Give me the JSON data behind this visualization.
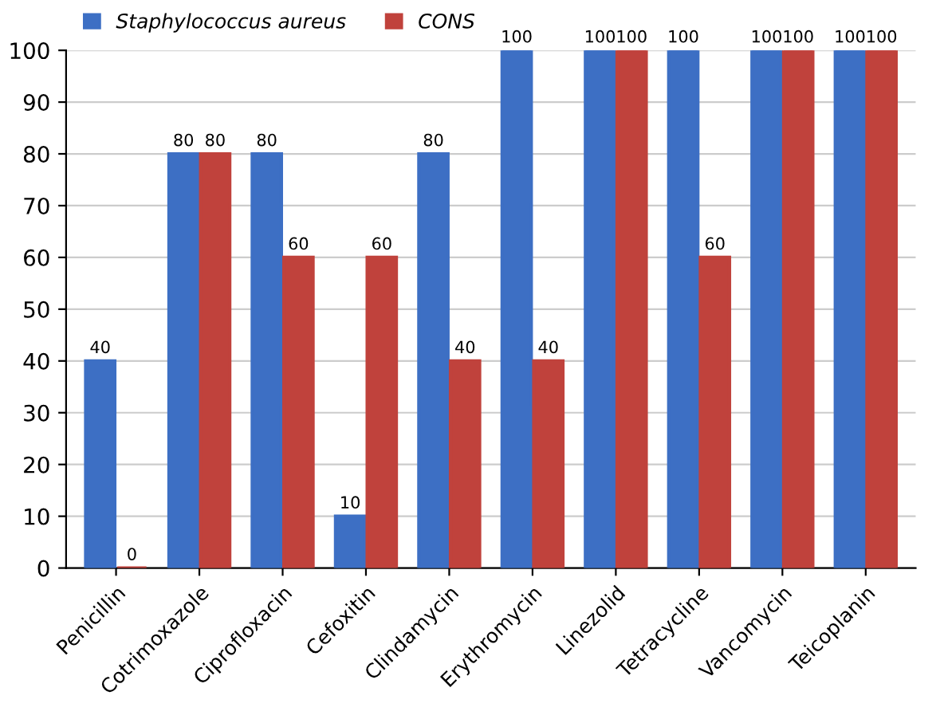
{
  "chart_data": {
    "type": "bar",
    "categories": [
      "Penicillin",
      "Cotrimoxazole",
      "Ciprofloxacin",
      "Cefoxitin",
      "Clindamycin",
      "Erythromycin",
      "Linezolid",
      "Tetracycline",
      "Vancomycin",
      "Teicoplanin"
    ],
    "series": [
      {
        "name": "Staphylococcus aureus",
        "color": "#3d6fc4",
        "values": [
          40,
          80,
          80,
          10,
          80,
          100,
          100,
          100,
          100,
          100
        ]
      },
      {
        "name": "CONS",
        "color": "#c0423c",
        "values": [
          0,
          80,
          60,
          60,
          40,
          40,
          100,
          60,
          100,
          100
        ]
      }
    ],
    "ylim": [
      0,
      100
    ],
    "yticks": [
      0,
      10,
      20,
      30,
      40,
      50,
      60,
      70,
      80,
      90,
      100
    ],
    "grid": "y",
    "legend": "top",
    "data_labels": true
  }
}
